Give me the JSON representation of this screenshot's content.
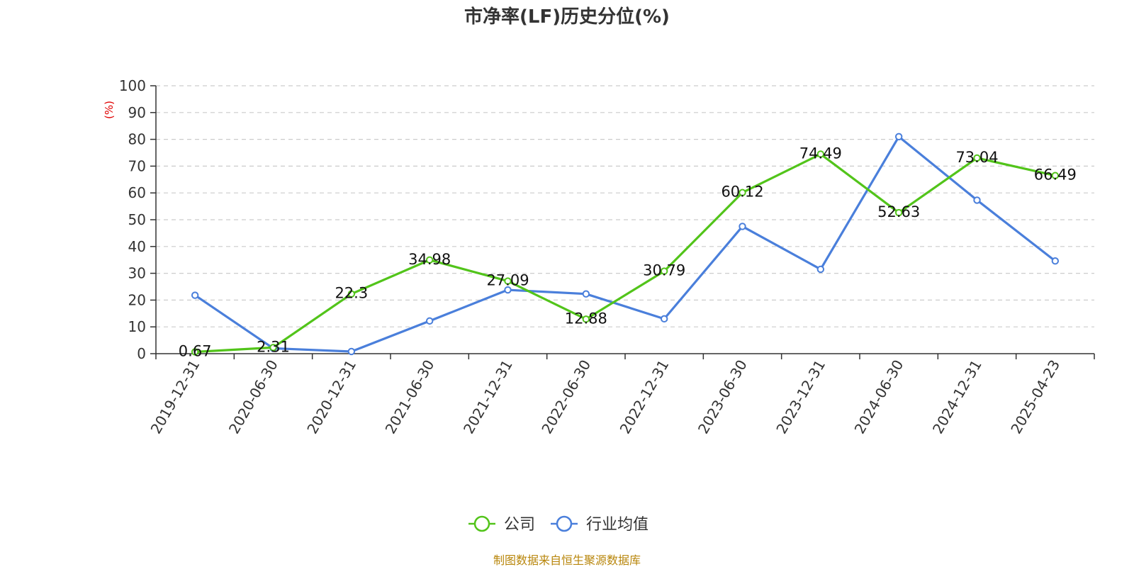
{
  "chart_data": {
    "type": "line",
    "title": "市净率(LF)历史分位(%)",
    "y_unit": "(%)",
    "ylim": [
      0,
      100
    ],
    "y_ticks": [
      0,
      10,
      20,
      30,
      40,
      50,
      60,
      70,
      80,
      90,
      100
    ],
    "grid": true,
    "legend_placement": "bottom-center",
    "categories": [
      "2019-12-31",
      "2020-06-30",
      "2020-12-31",
      "2021-06-30",
      "2021-12-31",
      "2022-06-30",
      "2022-12-31",
      "2023-06-30",
      "2023-12-31",
      "2024-06-30",
      "2024-12-31",
      "2025-04-23"
    ],
    "series": [
      {
        "name": "公司",
        "color": "#52c41a",
        "show_labels": true,
        "values": [
          0.67,
          2.31,
          22.3,
          34.98,
          27.09,
          12.88,
          30.79,
          60.12,
          74.49,
          52.63,
          73.04,
          66.49
        ]
      },
      {
        "name": "行业均值",
        "color": "#4a7fdb",
        "show_labels": false,
        "values": [
          21.8,
          2.0,
          0.8,
          12.2,
          23.8,
          22.3,
          13.0,
          47.5,
          31.5,
          81.0,
          57.3,
          34.6
        ]
      }
    ]
  },
  "source_text": "制图数据来自恒生聚源数据库"
}
